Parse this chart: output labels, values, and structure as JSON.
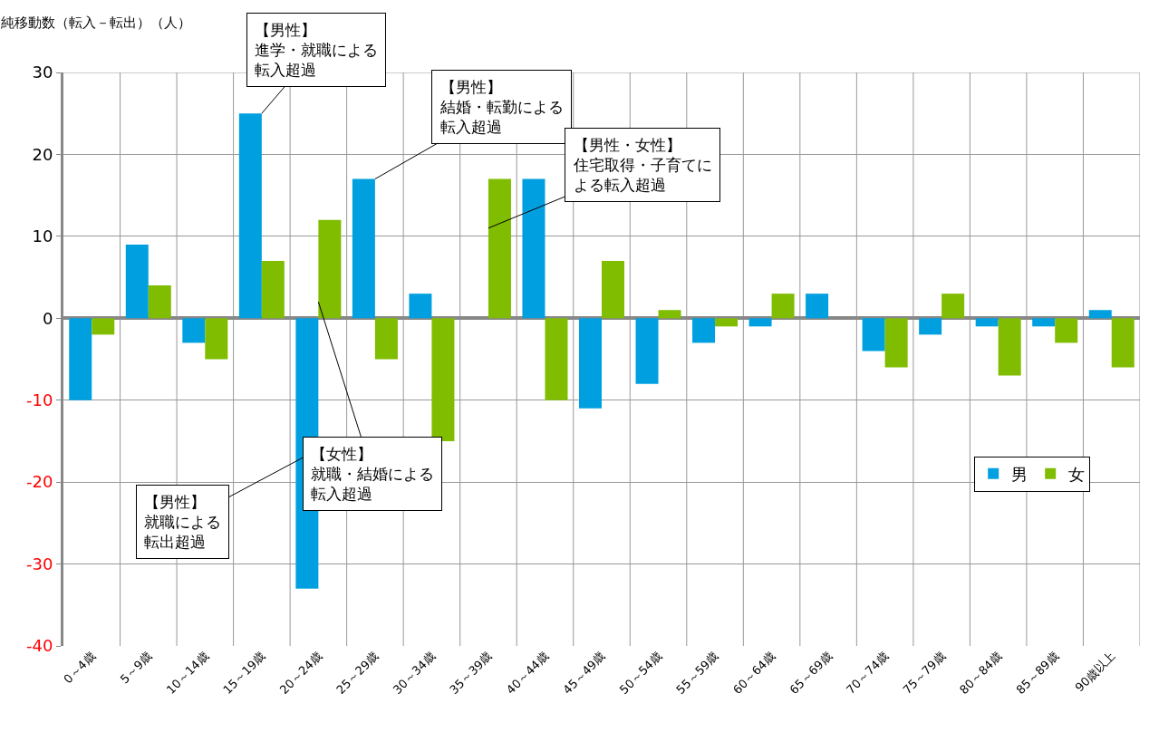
{
  "chart_data": {
    "type": "bar",
    "ylabel": "純移動数（転入－転出）（人）",
    "categories": [
      "0～4歳",
      "5～9歳",
      "10～14歳",
      "15～19歳",
      "20～24歳",
      "25～29歳",
      "30～34歳",
      "35～39歳",
      "40～44歳",
      "45～49歳",
      "50～54歳",
      "55～59歳",
      "60～64歳",
      "65～69歳",
      "70～74歳",
      "75～79歳",
      "80～84歳",
      "85～89歳",
      "90歳以上"
    ],
    "series": [
      {
        "name": "男",
        "color": "#00a0e0",
        "values": [
          -10,
          9,
          -3,
          25,
          -33,
          17,
          3,
          0,
          17,
          -11,
          -8,
          -3,
          -1,
          3,
          -4,
          -2,
          -1,
          -1,
          1
        ]
      },
      {
        "name": "女",
        "color": "#80bc00",
        "values": [
          -2,
          4,
          -5,
          7,
          12,
          -5,
          -15,
          17,
          -10,
          7,
          1,
          -1,
          3,
          0,
          -6,
          3,
          -7,
          -3,
          -6
        ]
      }
    ],
    "ylim": [
      -40,
      30
    ],
    "yticks": [
      -40,
      -30,
      -20,
      -10,
      0,
      10,
      20,
      30
    ],
    "grid": true,
    "legend": "right",
    "annotations": [
      {
        "text": "【男性】進学・就職による転入超過",
        "x": "15～19歳",
        "y": 25
      },
      {
        "text": "【男性】結婚・転勤による転入超過",
        "x": "25～29歳",
        "y": 17
      },
      {
        "text": "【男性・女性】住宅取得・子育てによる転入超過",
        "x": "35～39歳",
        "y": 11
      },
      {
        "text": "【男性】就職による転出超過",
        "x": "20～24歳",
        "y": -16
      },
      {
        "text": "【女性】就職・結婚による転入超過",
        "x": "20～24歳",
        "y": 2
      }
    ]
  }
}
